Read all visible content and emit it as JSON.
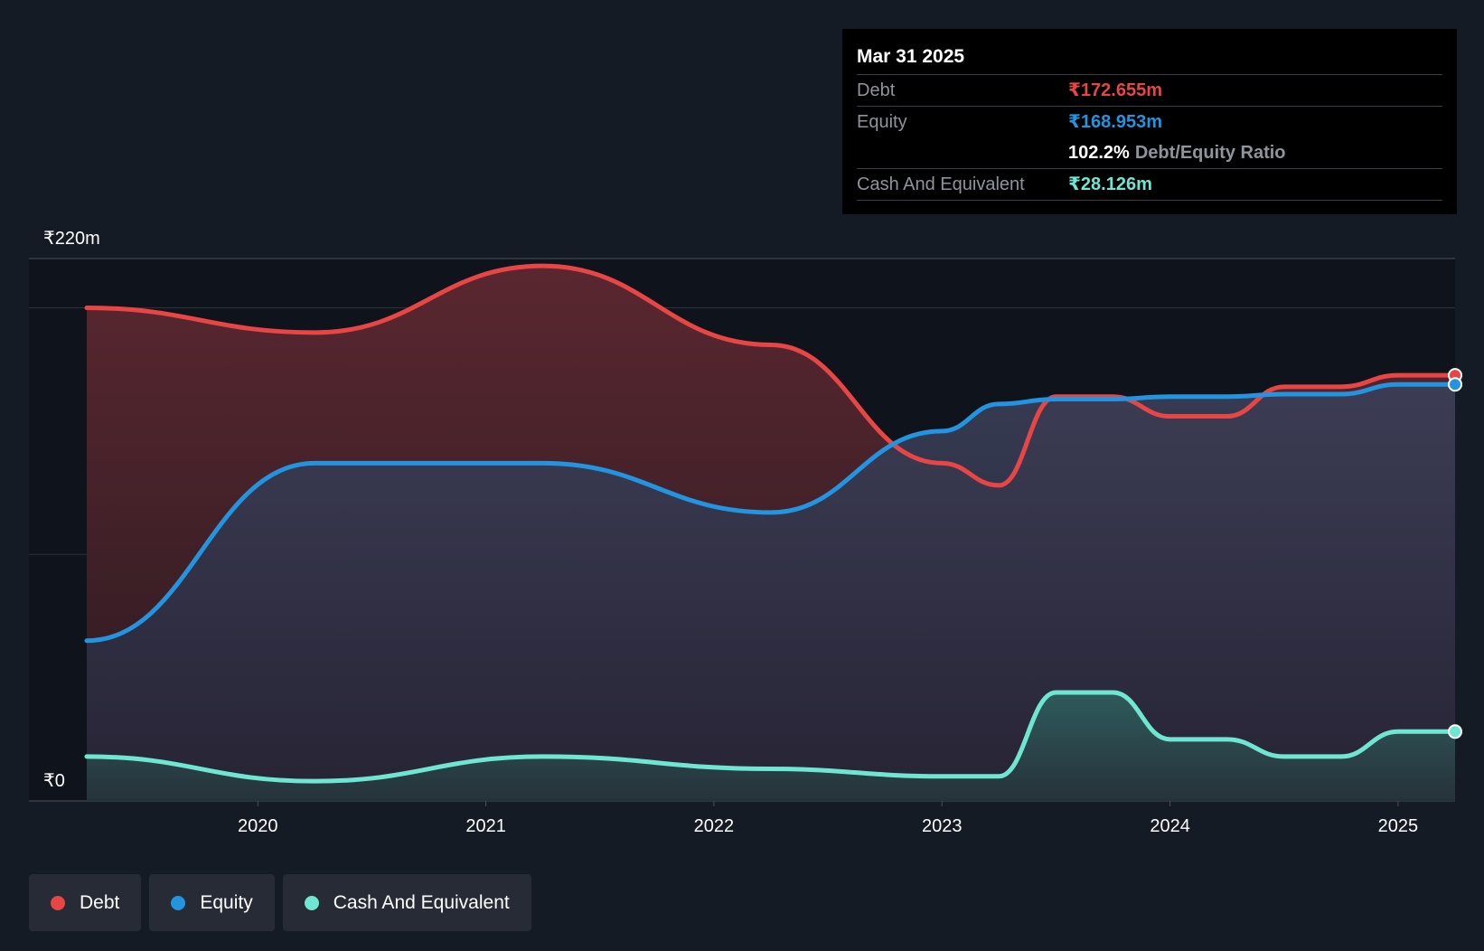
{
  "chart_data": {
    "type": "area",
    "y_max_label": "₹220m",
    "y_min_label": "₹0",
    "ylim": [
      0,
      220
    ],
    "xlim": [
      2019.25,
      2025.25
    ],
    "x_ticks": [
      {
        "value": 2020,
        "label": "2020"
      },
      {
        "value": 2021,
        "label": "2021"
      },
      {
        "value": 2022,
        "label": "2022"
      },
      {
        "value": 2023,
        "label": "2023"
      },
      {
        "value": 2024,
        "label": "2024"
      },
      {
        "value": 2025,
        "label": "2025"
      }
    ],
    "series": [
      {
        "name": "Debt",
        "color": "#e84545",
        "points": [
          [
            2019.25,
            200
          ],
          [
            2020.25,
            190
          ],
          [
            2021.25,
            217
          ],
          [
            2022.25,
            185
          ],
          [
            2023.0,
            137
          ],
          [
            2023.25,
            128
          ],
          [
            2023.5,
            164
          ],
          [
            2023.75,
            164
          ],
          [
            2024.0,
            156
          ],
          [
            2024.25,
            156
          ],
          [
            2024.5,
            168
          ],
          [
            2024.75,
            168
          ],
          [
            2025.0,
            172.655
          ],
          [
            2025.25,
            172.655
          ]
        ]
      },
      {
        "name": "Equity",
        "color": "#2394df",
        "points": [
          [
            2019.25,
            65
          ],
          [
            2020.25,
            137
          ],
          [
            2021.25,
            137
          ],
          [
            2022.25,
            117
          ],
          [
            2023.0,
            150
          ],
          [
            2023.25,
            161
          ],
          [
            2023.5,
            163
          ],
          [
            2023.75,
            163
          ],
          [
            2024.0,
            164
          ],
          [
            2024.25,
            164
          ],
          [
            2024.5,
            165
          ],
          [
            2024.75,
            165
          ],
          [
            2025.0,
            168.953
          ],
          [
            2025.25,
            168.953
          ]
        ]
      },
      {
        "name": "Cash And Equivalent",
        "color": "#6ee6d2",
        "points": [
          [
            2019.25,
            18
          ],
          [
            2020.25,
            8
          ],
          [
            2021.25,
            18
          ],
          [
            2022.25,
            13
          ],
          [
            2023.0,
            10
          ],
          [
            2023.25,
            10
          ],
          [
            2023.5,
            44
          ],
          [
            2023.75,
            44
          ],
          [
            2024.0,
            25
          ],
          [
            2024.25,
            25
          ],
          [
            2024.5,
            18
          ],
          [
            2024.75,
            18
          ],
          [
            2025.0,
            28.126
          ],
          [
            2025.25,
            28.126
          ]
        ]
      }
    ]
  },
  "tooltip": {
    "date": "Mar 31 2025",
    "debt_label": "Debt",
    "debt_value": "₹172.655m",
    "equity_label": "Equity",
    "equity_value": "₹168.953m",
    "ratio_value": "102.2%",
    "ratio_label": "Debt/Equity Ratio",
    "cash_label": "Cash And Equivalent",
    "cash_value": "₹28.126m"
  },
  "legend": [
    {
      "label": "Debt",
      "color": "#e84545"
    },
    {
      "label": "Equity",
      "color": "#2394df"
    },
    {
      "label": "Cash And Equivalent",
      "color": "#6ee6d2"
    }
  ]
}
